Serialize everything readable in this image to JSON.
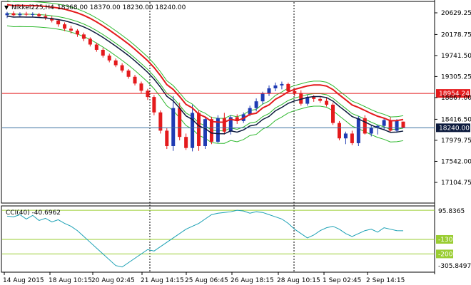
{
  "header": {
    "symbol": "Nikkei225,H4",
    "ohlc": "18368.00 18370.00 18230.00 18240.00"
  },
  "colors": {
    "bull": "#1f3bb3",
    "bear": "#e41a1c",
    "envelope": "#2db82d",
    "resistance_line": "#e41a1c",
    "price_line": "#3a6fa0",
    "cci_line": "#1aa0b4",
    "cci_levels": "#9acd32",
    "label_red": "#e41a1c",
    "label_dark": "#0d1b3e",
    "label_green": "#9acd32"
  },
  "chart_data": [
    {
      "type": "candlestick",
      "title": "Nikkei225,H4",
      "y_ticks": [
        "20629.25",
        "20178.75",
        "19741.50",
        "19305.25",
        "18867.00",
        "18416.50",
        "17979.75",
        "17542.00",
        "17104.75"
      ],
      "y_range": [
        17104.75,
        20629.25
      ],
      "markers": [
        {
          "label": "18954.24",
          "value": 18954.24,
          "style": "red"
        },
        {
          "label": "18240.00",
          "value": 18240.0,
          "style": "dark"
        }
      ],
      "candles": [
        [
          20580,
          20650,
          20520,
          20620
        ],
        [
          20620,
          20660,
          20560,
          20580
        ],
        [
          20580,
          20640,
          20540,
          20610
        ],
        [
          20610,
          20650,
          20560,
          20590
        ],
        [
          20590,
          20640,
          20540,
          20600
        ],
        [
          20600,
          20630,
          20540,
          20560
        ],
        [
          20560,
          20610,
          20480,
          20520
        ],
        [
          20520,
          20560,
          20430,
          20470
        ],
        [
          20470,
          20500,
          20340,
          20390
        ],
        [
          20390,
          20430,
          20250,
          20300
        ],
        [
          20300,
          20360,
          20200,
          20260
        ],
        [
          20260,
          20290,
          20130,
          20180
        ],
        [
          20180,
          20220,
          20040,
          20090
        ],
        [
          20090,
          20120,
          19930,
          19970
        ],
        [
          19970,
          20010,
          19820,
          19860
        ],
        [
          19860,
          19900,
          19700,
          19740
        ],
        [
          19740,
          19780,
          19600,
          19640
        ],
        [
          19640,
          19680,
          19500,
          19540
        ],
        [
          19540,
          19580,
          19390,
          19430
        ],
        [
          19430,
          19460,
          19260,
          19300
        ],
        [
          19300,
          19340,
          19120,
          19160
        ],
        [
          19160,
          19200,
          18960,
          19010
        ],
        [
          19010,
          19050,
          18820,
          18880
        ],
        [
          18880,
          18920,
          18500,
          18560
        ],
        [
          18560,
          18600,
          18120,
          18180
        ],
        [
          18180,
          18230,
          17800,
          17860
        ],
        [
          17860,
          18900,
          17760,
          18650
        ],
        [
          18650,
          18760,
          17980,
          18050
        ],
        [
          18050,
          18120,
          17780,
          17820
        ],
        [
          17820,
          18720,
          17750,
          18550
        ],
        [
          18550,
          18600,
          17760,
          17860
        ],
        [
          17860,
          18460,
          17800,
          18420
        ],
        [
          18420,
          18470,
          17900,
          17950
        ],
        [
          17950,
          18500,
          17920,
          18440
        ],
        [
          18440,
          18550,
          18100,
          18160
        ],
        [
          18160,
          18500,
          18100,
          18460
        ],
        [
          18460,
          18520,
          18320,
          18380
        ],
        [
          18380,
          18560,
          18340,
          18520
        ],
        [
          18520,
          18700,
          18480,
          18650
        ],
        [
          18650,
          18850,
          18580,
          18790
        ],
        [
          18790,
          18990,
          18730,
          18950
        ],
        [
          18950,
          19120,
          18900,
          19060
        ],
        [
          19060,
          19180,
          19000,
          19120
        ],
        [
          19120,
          19200,
          19040,
          19150
        ],
        [
          19150,
          19180,
          18980,
          19000
        ],
        [
          19000,
          19050,
          18900,
          18960
        ],
        [
          18960,
          19020,
          18700,
          18740
        ],
        [
          18740,
          18920,
          18700,
          18880
        ],
        [
          18880,
          18920,
          18780,
          18840
        ],
        [
          18840,
          18900,
          18760,
          18800
        ],
        [
          18800,
          18860,
          18680,
          18720
        ],
        [
          18720,
          18760,
          18300,
          18340
        ],
        [
          18340,
          18380,
          17980,
          18020
        ],
        [
          18020,
          18160,
          17900,
          18120
        ],
        [
          18120,
          18180,
          17880,
          17920
        ],
        [
          17920,
          18480,
          17860,
          18440
        ],
        [
          18440,
          18500,
          18100,
          18120
        ],
        [
          18120,
          18300,
          18060,
          18240
        ],
        [
          18240,
          18300,
          18100,
          18280
        ],
        [
          18280,
          18440,
          18200,
          18400
        ],
        [
          18400,
          18460,
          18160,
          18180
        ],
        [
          18180,
          18420,
          18140,
          18380
        ],
        [
          18368,
          18370,
          18230,
          18240
        ]
      ]
    },
    {
      "type": "line",
      "title": "CCI(40) -40.6962",
      "y_ticks": [
        "95.8365",
        "-130",
        "-200",
        "-305.8497"
      ],
      "levels": [
        100,
        -100,
        -200
      ],
      "values": [
        60,
        55,
        70,
        40,
        65,
        30,
        45,
        20,
        35,
        10,
        -10,
        -40,
        -80,
        -120,
        -160,
        -200,
        -240,
        -280,
        -290,
        -260,
        -230,
        -200,
        -170,
        -180,
        -150,
        -120,
        -90,
        -60,
        -30,
        -10,
        10,
        40,
        70,
        80,
        85,
        90,
        100,
        95,
        80,
        90,
        85,
        70,
        55,
        40,
        10,
        -30,
        -60,
        -90,
        -70,
        -40,
        -20,
        -10,
        -30,
        -60,
        -80,
        -60,
        -40,
        -30,
        -50,
        -20,
        -30,
        -40,
        -41
      ]
    }
  ],
  "x_axis": {
    "labels": [
      "14 Aug 2015",
      "18 Aug 10:15",
      "20 Aug 02:45",
      "21 Aug 14:15",
      "25 Aug 06:45",
      "26 Aug 18:15",
      "28 Aug 10:15",
      "1 Sep 02:45",
      "2 Sep 14:15"
    ]
  }
}
